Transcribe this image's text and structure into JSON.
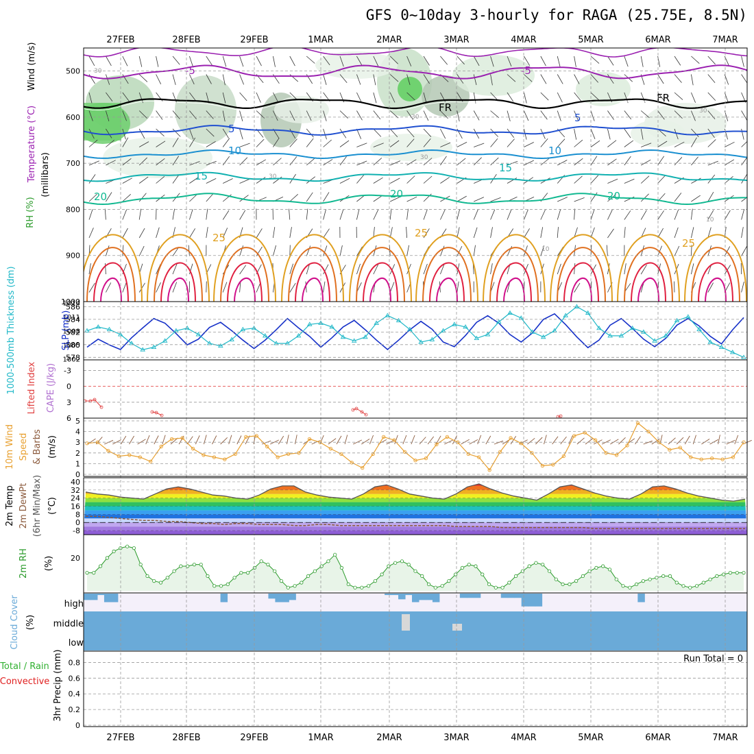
{
  "title": "GFS 0~10day 3-hourly for RAGA (25.75E, 8.5N)",
  "date_labels": [
    "27FEB",
    "28FEB",
    "29FEB",
    "1MAR",
    "2MAR",
    "3MAR",
    "4MAR",
    "5MAR",
    "6MAR",
    "7MAR"
  ],
  "colors": {
    "purple": "#9a1fb0",
    "black": "#000000",
    "blue": "#1f4fd0",
    "lightblue": "#1a8fd0",
    "teal": "#10b0b0",
    "green": "#10b890",
    "gold": "#e0a020",
    "orange": "#e07020",
    "red": "#e02040",
    "magenta": "#d0108a",
    "rhgreen": "#78c878",
    "grid": "#999999",
    "cyan": "#20b8c8",
    "slp": "#1530c8",
    "precipLabelRed": "#e02020",
    "precipLabelGreen": "#30b030",
    "cloud": "#6aaad8"
  },
  "panels": {
    "cross_section": {
      "y_label": "(millibars)",
      "label_wind": "Wind (m/s)",
      "label_temp": "Temperature (°C)",
      "label_rh": "RH (%)",
      "y_ticks": [
        "500",
        "600",
        "700",
        "800",
        "900",
        "1000"
      ],
      "contour_labels": [
        "-5",
        "-5",
        "FR",
        "FR",
        "5",
        "5",
        "10",
        "10",
        "15",
        "15",
        "20",
        "20",
        "20",
        "25",
        "25",
        "25",
        "30",
        "30",
        "30",
        "30",
        "30",
        "10",
        "10"
      ]
    },
    "thickness": {
      "label_left": "1000-500mb Thickness (dm)",
      "label_right": "SLP (mb)",
      "left_ticks": [
        "578",
        "580",
        "582",
        "584",
        "586"
      ],
      "right_ticks": [
        "1002",
        "1005",
        "1008",
        "1011",
        "1014"
      ]
    },
    "lifted": {
      "label_left": "Lifted Index",
      "label_right": "CAPE (J/kg)",
      "ticks": [
        "-3",
        "0",
        "3",
        "6"
      ]
    },
    "wind10": {
      "label_a": "10m Wind",
      "label_b": "Speed",
      "label_c": "& Barbs",
      "unit": "(m/s)",
      "ticks": [
        "0",
        "1",
        "2",
        "3",
        "4",
        "5"
      ]
    },
    "temp2m": {
      "label_a": "2m Temp",
      "label_b": "2m DewPt",
      "label_c": "(6hr Min/Max)",
      "unit": "(°C)",
      "ticks": [
        "-8",
        "0",
        "8",
        "16",
        "24",
        "32",
        "40"
      ]
    },
    "rh2m": {
      "label": "2m RH",
      "unit": "(%)",
      "ticks": [
        "20"
      ]
    },
    "cloud": {
      "label": "Cloud Cover",
      "unit": "(%)",
      "levels": [
        "high",
        "middle",
        "low"
      ]
    },
    "precip": {
      "label_a": "Total / Rain",
      "label_b": "Convective",
      "label_c": "3hr Precip (mm)",
      "ticks": [
        "0",
        "0.2",
        "0.4",
        "0.6",
        "0.8"
      ],
      "run_total": "Run Total = 0"
    }
  },
  "chart_data": [
    {
      "type": "line",
      "title": "GFS 0~10day 3-hourly for RAGA (25.75E, 8.5N)",
      "xlabel": "",
      "ylabel": "1000-500mb Thickness (dm)",
      "x_start": "26FEB 18Z",
      "x_step_hours": 6,
      "ylim": [
        578,
        586
      ],
      "series": [
        {
          "name": "1000-500mb Thickness (dm)",
          "values": [
            582.2,
            582.8,
            582.4,
            581.6,
            580.2,
            579.2,
            579.6,
            580.6,
            582.2,
            582.6,
            581.6,
            580.2,
            579.8,
            580.8,
            582.4,
            582.6,
            581.4,
            580.2,
            580.2,
            581.4,
            583.2,
            583.4,
            582.8,
            581.2,
            580.6,
            581.2,
            583.4,
            584.6,
            583.8,
            582.4,
            580.4,
            580.8,
            582.2,
            583.2,
            582.8,
            581.0,
            581.6,
            583.6,
            585.0,
            584.2,
            582.0,
            581.2,
            582.2,
            584.6,
            586.0,
            585.0,
            582.6,
            581.4,
            581.4,
            582.6,
            582.0,
            580.6,
            581.4,
            583.8,
            584.4,
            582.4,
            580.4,
            579.6,
            578.8,
            578.0
          ]
        }
      ]
    },
    {
      "type": "line",
      "ylabel": "SLP (mb)",
      "ylim": [
        1002,
        1014
      ],
      "series": [
        {
          "name": "SLP (mb)",
          "values": [
            1004.5,
            1006.2,
            1005.0,
            1004.0,
            1006.5,
            1008.6,
            1010.6,
            1009.6,
            1007.4,
            1005.0,
            1006.2,
            1008.7,
            1009.8,
            1008.0,
            1006.0,
            1004.2,
            1006.0,
            1008.2,
            1010.6,
            1008.6,
            1006.8,
            1004.5,
            1006.5,
            1008.8,
            1010.2,
            1008.2,
            1006.0,
            1004.0,
            1006.0,
            1008.2,
            1010.0,
            1008.3,
            1005.6,
            1004.6,
            1007.0,
            1009.8,
            1011.2,
            1009.6,
            1007.2,
            1005.6,
            1007.5,
            1010.4,
            1011.6,
            1009.3,
            1006.7,
            1004.4,
            1006.0,
            1009.2,
            1010.6,
            1008.5,
            1006.2,
            1004.6,
            1006.4,
            1009.2,
            1010.6,
            1009.0,
            1006.8,
            1005.2,
            1008.2,
            1010.8
          ]
        }
      ]
    },
    {
      "type": "line",
      "ylabel": "10m Wind Speed (m/s)",
      "ylim": [
        0,
        5
      ],
      "series": [
        {
          "name": "10m Wind Speed",
          "values": [
            2.9,
            3.0,
            2.2,
            1.7,
            1.8,
            1.6,
            1.2,
            2.6,
            3.3,
            3.4,
            2.4,
            1.8,
            1.6,
            1.4,
            1.9,
            3.5,
            3.6,
            2.6,
            1.6,
            1.9,
            2.0,
            3.3,
            3.0,
            2.4,
            1.9,
            1.1,
            0.6,
            1.9,
            3.5,
            3.2,
            2.1,
            1.3,
            1.5,
            2.8,
            3.5,
            3.0,
            1.9,
            1.6,
            0.4,
            2.1,
            3.4,
            2.9,
            2.0,
            0.8,
            0.9,
            1.7,
            3.6,
            3.9,
            3.2,
            2.0,
            1.8,
            2.7,
            4.8,
            4.0,
            3.0,
            2.3,
            2.5,
            1.6,
            1.4,
            1.5,
            1.4,
            1.6,
            3.0
          ]
        }
      ]
    },
    {
      "type": "area",
      "ylabel": "2m Temp (°C)",
      "ylim": [
        -8,
        40
      ],
      "series": [
        {
          "name": "2m Temp",
          "values": [
            30,
            28,
            27,
            25,
            24,
            23,
            28,
            33,
            35,
            33,
            30,
            27,
            26,
            24,
            23,
            27,
            33,
            36,
            36,
            30,
            27,
            25,
            24,
            23,
            28,
            35,
            37,
            33,
            28,
            26,
            24,
            23,
            28,
            35,
            38,
            33,
            29,
            26,
            24,
            22,
            28,
            35,
            37,
            33,
            29,
            26,
            24,
            23,
            28,
            35,
            36,
            33,
            29,
            26,
            24,
            22,
            21,
            23
          ]
        },
        {
          "name": "2m DewPt",
          "values": [
            6,
            6,
            5,
            4,
            3,
            2,
            2,
            1,
            1,
            0,
            -1,
            -1,
            -2,
            -1,
            -1,
            -2,
            -2,
            -2,
            -3,
            -3,
            -2,
            -2,
            -3,
            -3,
            -3,
            -3,
            -3,
            -3,
            -3,
            -3,
            -3,
            -3,
            -4,
            -4,
            -4,
            -4,
            -5,
            -5,
            -5,
            -5,
            -5,
            -5,
            -5,
            -5,
            -6,
            -6,
            -6,
            -6,
            -6,
            -6,
            -6,
            -6,
            -6,
            -6,
            -6,
            -6,
            -6,
            -6
          ]
        }
      ]
    },
    {
      "type": "area",
      "ylabel": "2m RH (%)",
      "series": [
        {
          "name": "2m RH",
          "values": [
            11,
            11,
            15,
            20,
            24,
            26,
            27,
            26,
            16,
            9,
            6,
            5,
            8,
            12,
            15,
            15,
            16,
            16,
            9,
            3,
            3,
            4,
            8,
            11,
            11,
            14,
            18,
            16,
            12,
            6,
            2,
            3,
            5,
            9,
            12,
            15,
            18,
            22,
            14,
            4,
            2,
            2,
            3,
            6,
            10,
            15,
            17,
            18,
            16,
            12,
            9,
            4,
            2,
            3,
            6,
            10,
            14,
            16,
            15,
            10,
            4,
            2,
            2,
            5,
            9,
            12,
            15,
            17,
            16,
            12,
            7,
            4,
            4,
            6,
            9,
            12,
            14,
            15,
            13,
            7,
            3,
            2,
            4,
            6,
            7,
            8,
            9,
            9,
            5,
            3,
            2,
            3,
            5,
            7,
            9,
            10,
            11,
            11,
            11
          ]
        }
      ]
    },
    {
      "type": "bar",
      "ylabel": "Cloud Cover (%)",
      "series": [
        {
          "name": "high",
          "values": [
            36,
            36,
            8,
            48,
            48,
            0,
            0,
            0,
            0,
            0,
            0,
            0,
            0,
            0,
            0,
            0,
            0,
            0,
            0,
            0,
            48,
            0,
            0,
            0,
            0,
            0,
            0,
            28,
            48,
            48,
            36,
            0,
            0,
            0,
            0,
            0,
            0,
            0,
            0,
            0,
            0,
            0,
            0,
            0,
            8,
            8,
            32,
            8,
            48,
            36,
            36,
            48,
            0,
            0,
            0,
            24,
            24,
            24,
            0,
            0,
            0,
            24,
            24,
            24,
            72,
            72,
            72,
            0,
            0,
            0,
            0,
            0,
            0,
            0,
            0,
            0,
            0,
            0,
            0,
            0,
            0,
            48,
            0,
            0,
            0,
            0,
            0,
            0,
            0,
            0,
            0,
            0,
            0,
            0,
            0,
            0,
            0
          ]
        }
      ]
    },
    {
      "type": "bar",
      "ylabel": "3hr Precip (mm)",
      "ylim": [
        0,
        0.9
      ],
      "series": [
        {
          "name": "Total / Rain",
          "values": [
            0,
            0,
            0,
            0,
            0,
            0,
            0,
            0,
            0,
            0
          ]
        }
      ]
    }
  ]
}
